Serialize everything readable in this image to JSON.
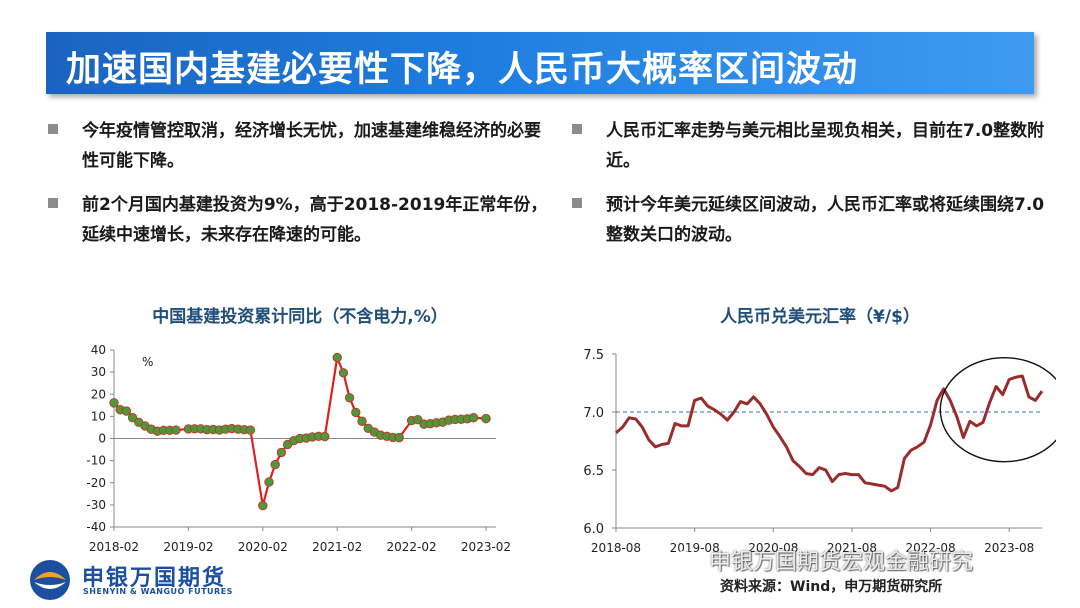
{
  "title": "加速国内基建必要性下降，人民币大概率区间波动",
  "left_bullets": [
    "今年疫情管控取消，经济增长无忧，加速基建维稳经济的必要性可能下降。",
    "前2个月国内基建投资为9%，高于2018-2019年正常年份，延续中速增长，未来存在降速的可能。"
  ],
  "right_bullets": [
    "人民币汇率走势与美元相比呈现负相关，目前在7.0整数附近。",
    "预计今年美元延续区间波动，人民币汇率或将延续围绕7.0整数关口的波动。"
  ],
  "source": "资料来源：Wind，申万期货研究所",
  "logo": {
    "name": "申银万国期货",
    "sub": "SHENYIN & WANGUO FUTURES"
  },
  "watermark": "申银万国期货宏观金融研究",
  "colors": {
    "banner": "#1f7ee0",
    "infra_line": "#e02020",
    "infra_marker": "#4a9a3a",
    "fx_line": "#9b2c2c",
    "reference_line": "#2e6fc0"
  },
  "chart_data": [
    {
      "type": "line",
      "title": "中国基建投资累计同比（不含电力,%）",
      "ylabel": "%",
      "ylim": [
        -40,
        40
      ],
      "yticks": [
        40,
        30,
        20,
        10,
        0,
        -10,
        -20,
        -30,
        -40
      ],
      "xticks": [
        "2018-02",
        "2019-02",
        "2020-02",
        "2021-02",
        "2022-02",
        "2023-02"
      ],
      "series": [
        {
          "markers": true,
          "points": [
            [
              "2018-02",
              16.1
            ],
            [
              "2018-03",
              13.0
            ],
            [
              "2018-04",
              12.4
            ],
            [
              "2018-05",
              9.4
            ],
            [
              "2018-06",
              7.3
            ],
            [
              "2018-07",
              5.7
            ],
            [
              "2018-08",
              4.2
            ],
            [
              "2018-09",
              3.3
            ],
            [
              "2018-10",
              3.7
            ],
            [
              "2018-11",
              3.7
            ],
            [
              "2018-12",
              3.8
            ],
            [
              "2019-02",
              4.3
            ],
            [
              "2019-03",
              4.4
            ],
            [
              "2019-04",
              4.4
            ],
            [
              "2019-05",
              4.0
            ],
            [
              "2019-06",
              4.1
            ],
            [
              "2019-07",
              3.8
            ],
            [
              "2019-08",
              4.2
            ],
            [
              "2019-09",
              4.5
            ],
            [
              "2019-10",
              4.2
            ],
            [
              "2019-11",
              4.0
            ],
            [
              "2019-12",
              3.8
            ],
            [
              "2020-02",
              -30.3
            ],
            [
              "2020-03",
              -19.7
            ],
            [
              "2020-04",
              -11.8
            ],
            [
              "2020-05",
              -6.3
            ],
            [
              "2020-06",
              -2.7
            ],
            [
              "2020-07",
              -1.0
            ],
            [
              "2020-08",
              0.0
            ],
            [
              "2020-09",
              0.2
            ],
            [
              "2020-10",
              0.7
            ],
            [
              "2020-11",
              1.0
            ],
            [
              "2020-12",
              0.9
            ],
            [
              "2021-02",
              36.6
            ],
            [
              "2021-03",
              29.7
            ],
            [
              "2021-04",
              18.4
            ],
            [
              "2021-05",
              11.8
            ],
            [
              "2021-06",
              7.8
            ],
            [
              "2021-07",
              4.6
            ],
            [
              "2021-08",
              2.9
            ],
            [
              "2021-09",
              1.5
            ],
            [
              "2021-10",
              1.0
            ],
            [
              "2021-11",
              0.5
            ],
            [
              "2021-12",
              0.4
            ],
            [
              "2022-02",
              8.1
            ],
            [
              "2022-03",
              8.5
            ],
            [
              "2022-04",
              6.5
            ],
            [
              "2022-05",
              6.7
            ],
            [
              "2022-06",
              7.1
            ],
            [
              "2022-07",
              7.4
            ],
            [
              "2022-08",
              8.3
            ],
            [
              "2022-09",
              8.6
            ],
            [
              "2022-10",
              8.7
            ],
            [
              "2022-11",
              8.9
            ],
            [
              "2022-12",
              9.4
            ],
            [
              "2023-02",
              9.0
            ]
          ]
        }
      ]
    },
    {
      "type": "line",
      "title": "人民币兑美元汇率（¥/$）",
      "ylim": [
        6.0,
        7.5
      ],
      "yticks": [
        "7.5",
        "7.0",
        "6.5",
        "6.0"
      ],
      "xticks": [
        "2018-08",
        "2019-08",
        "2020-08",
        "2021-08",
        "2022-08",
        "2023-08"
      ],
      "reference_line": 7.0,
      "annotation": "circle around the late-2022 to 2023 rise above 7.0",
      "series": [
        {
          "points": [
            [
              "2018-08",
              6.82
            ],
            [
              "2018-09",
              6.87
            ],
            [
              "2018-10",
              6.95
            ],
            [
              "2018-11",
              6.94
            ],
            [
              "2018-12",
              6.87
            ],
            [
              "2019-01",
              6.76
            ],
            [
              "2019-02",
              6.7
            ],
            [
              "2019-03",
              6.72
            ],
            [
              "2019-04",
              6.73
            ],
            [
              "2019-05",
              6.9
            ],
            [
              "2019-06",
              6.88
            ],
            [
              "2019-07",
              6.88
            ],
            [
              "2019-08",
              7.1
            ],
            [
              "2019-09",
              7.12
            ],
            [
              "2019-10",
              7.05
            ],
            [
              "2019-11",
              7.02
            ],
            [
              "2019-12",
              6.98
            ],
            [
              "2020-01",
              6.93
            ],
            [
              "2020-02",
              7.0
            ],
            [
              "2020-03",
              7.09
            ],
            [
              "2020-04",
              7.07
            ],
            [
              "2020-05",
              7.13
            ],
            [
              "2020-06",
              7.07
            ],
            [
              "2020-07",
              6.98
            ],
            [
              "2020-08",
              6.87
            ],
            [
              "2020-09",
              6.79
            ],
            [
              "2020-10",
              6.7
            ],
            [
              "2020-11",
              6.58
            ],
            [
              "2020-12",
              6.53
            ],
            [
              "2021-01",
              6.47
            ],
            [
              "2021-02",
              6.46
            ],
            [
              "2021-03",
              6.52
            ],
            [
              "2021-04",
              6.5
            ],
            [
              "2021-05",
              6.4
            ],
            [
              "2021-06",
              6.46
            ],
            [
              "2021-07",
              6.47
            ],
            [
              "2021-08",
              6.46
            ],
            [
              "2021-09",
              6.46
            ],
            [
              "2021-10",
              6.39
            ],
            [
              "2021-11",
              6.38
            ],
            [
              "2021-12",
              6.37
            ],
            [
              "2022-01",
              6.36
            ],
            [
              "2022-02",
              6.32
            ],
            [
              "2022-03",
              6.35
            ],
            [
              "2022-04",
              6.6
            ],
            [
              "2022-05",
              6.67
            ],
            [
              "2022-06",
              6.7
            ],
            [
              "2022-07",
              6.74
            ],
            [
              "2022-08",
              6.89
            ],
            [
              "2022-09",
              7.1
            ],
            [
              "2022-10",
              7.2
            ],
            [
              "2022-11",
              7.1
            ],
            [
              "2022-12",
              6.96
            ],
            [
              "2023-01",
              6.78
            ],
            [
              "2023-02",
              6.92
            ],
            [
              "2023-03",
              6.88
            ],
            [
              "2023-04",
              6.91
            ],
            [
              "2023-05",
              7.08
            ],
            [
              "2023-06",
              7.22
            ],
            [
              "2023-07",
              7.15
            ],
            [
              "2023-08",
              7.28
            ],
            [
              "2023-09",
              7.3
            ],
            [
              "2023-10",
              7.31
            ],
            [
              "2023-11",
              7.13
            ],
            [
              "2023-12",
              7.1
            ],
            [
              "2024-01",
              7.18
            ]
          ]
        }
      ]
    }
  ]
}
